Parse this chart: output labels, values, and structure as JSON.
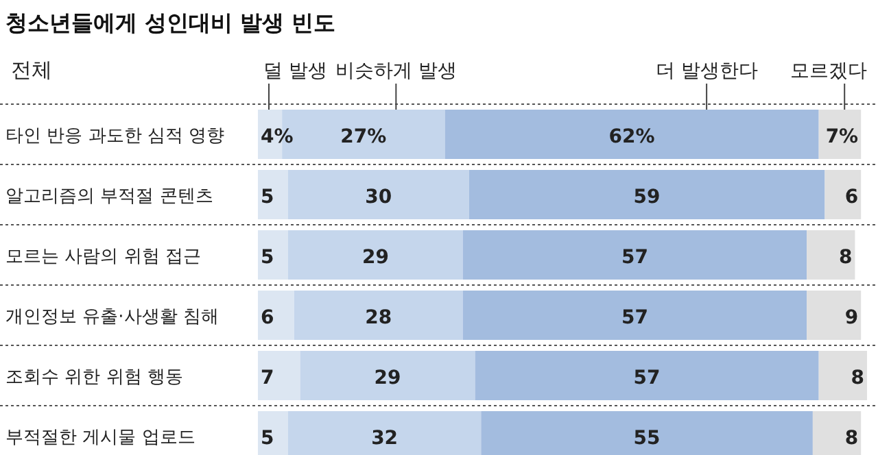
{
  "chart_data": {
    "type": "bar",
    "orientation": "horizontal",
    "stacked": true,
    "title": "청소년들에게 성인대비 발생 빈도",
    "legend_title": "전체",
    "categories": [
      "타인 반응 과도한 심적 영향",
      "알고리즘의 부적절 콘텐츠",
      "모르는 사람의 위험 접근",
      "개인정보 유출·사생활 침해",
      "조회수 위한 위험 행동",
      "부적절한 게시물 업로드"
    ],
    "xlim": [
      0,
      101
    ],
    "legend": "top",
    "series": [
      {
        "name": "덜 발생",
        "color": "#dce6f2",
        "values": [
          4,
          5,
          5,
          6,
          7,
          5
        ],
        "value_labels": [
          "4%",
          "5",
          "5",
          "6",
          "7",
          "5"
        ]
      },
      {
        "name": "비슷하게 발생",
        "color": "#c5d6ec",
        "values": [
          27,
          30,
          29,
          28,
          29,
          32
        ],
        "value_labels": [
          "27%",
          "30",
          "29",
          "28",
          "29",
          "32"
        ]
      },
      {
        "name": "더 발생한다",
        "color": "#a3bcdf",
        "values": [
          62,
          59,
          57,
          57,
          57,
          55
        ],
        "value_labels": [
          "62%",
          "59",
          "57",
          "57",
          "57",
          "55"
        ]
      },
      {
        "name": "모르겠다",
        "color": "#e0e0e0",
        "values": [
          7,
          6,
          8,
          9,
          8,
          8
        ],
        "value_labels": [
          "7%",
          "6",
          "8",
          "9",
          "8",
          "8"
        ]
      }
    ]
  }
}
